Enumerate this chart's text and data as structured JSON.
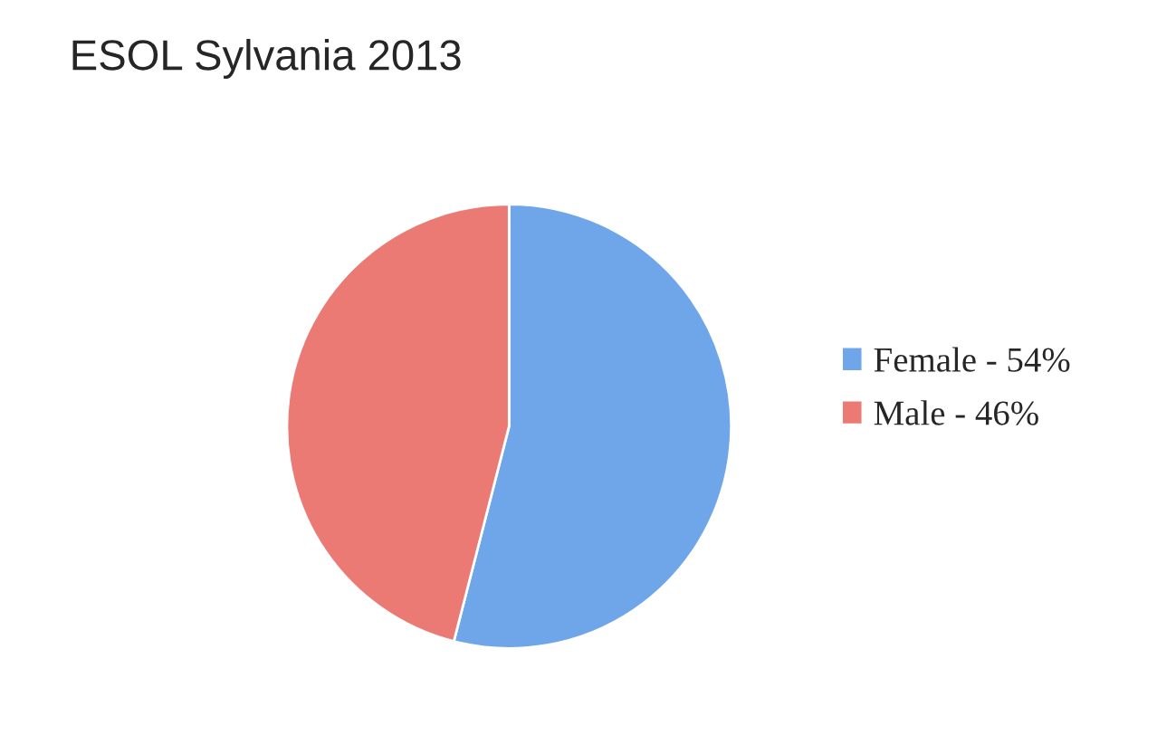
{
  "chart_data": {
    "type": "pie",
    "title": "ESOL Sylvania 2013",
    "categories": [
      "Female - 54%",
      "Male - 46%"
    ],
    "values": [
      54,
      46
    ],
    "colors": [
      "#6fa6ea",
      "#ec7a74"
    ],
    "legend": "right"
  }
}
